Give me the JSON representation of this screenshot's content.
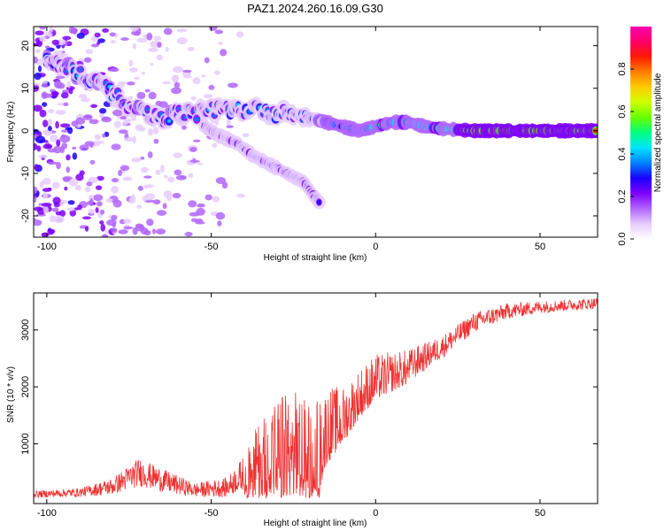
{
  "title": "PAZ1.2024.260.16.09.G30",
  "chart_data": [
    {
      "type": "heatmap",
      "title": "PAZ1.2024.260.16.09.G30",
      "xlabel": "Height of straight line (km)",
      "ylabel": "Frequency (Hz)",
      "xlim": [
        -104,
        67.5
      ],
      "ylim": [
        -25,
        24.5
      ],
      "xticks": [
        -100,
        -50,
        0,
        50
      ],
      "yticks": [
        -20,
        -10,
        0,
        10,
        20
      ],
      "colorbar": {
        "label": "Normalized spectral amplitude",
        "range": [
          0,
          1
        ],
        "ticks": [
          0.0,
          0.2,
          0.4,
          0.6,
          0.8
        ],
        "colors": [
          "#ffffff",
          "#e6ccff",
          "#b266ff",
          "#7f00ff",
          "#1a00ff",
          "#0080ff",
          "#00e5ff",
          "#00ff80",
          "#66ff00",
          "#ccff00",
          "#ffcc00",
          "#ff7f00",
          "#ff1a00",
          "#ff0066",
          "#ff00b2"
        ]
      },
      "ridges": [
        {
          "name": "main",
          "points": [
            [
              -100,
              17
            ],
            [
              -92,
              14
            ],
            [
              -85,
              11
            ],
            [
              -80,
              9
            ],
            [
              -75,
              6
            ],
            [
              -70,
              4
            ],
            [
              -65,
              3
            ],
            [
              -60,
              4
            ],
            [
              -55,
              4
            ],
            [
              -50,
              5
            ],
            [
              -45,
              5
            ],
            [
              -40,
              5
            ],
            [
              -35,
              5
            ],
            [
              -30,
              4
            ],
            [
              -25,
              4
            ],
            [
              -20,
              3
            ],
            [
              -15,
              2
            ],
            [
              -10,
              1
            ],
            [
              -5,
              0
            ],
            [
              0,
              1
            ],
            [
              5,
              2
            ],
            [
              10,
              2
            ],
            [
              15,
              1
            ],
            [
              20,
              0.5
            ],
            [
              30,
              0
            ],
            [
              40,
              0
            ],
            [
              50,
              0
            ],
            [
              60,
              0
            ],
            [
              67,
              0
            ]
          ]
        },
        {
          "name": "branch",
          "points": [
            [
              -52,
              1
            ],
            [
              -48,
              -1
            ],
            [
              -42,
              -3
            ],
            [
              -37,
              -6
            ],
            [
              -32,
              -8
            ],
            [
              -27,
              -10
            ],
            [
              -22,
              -12
            ],
            [
              -19,
              -15
            ],
            [
              -17,
              -17
            ]
          ]
        }
      ]
    },
    {
      "type": "line",
      "xlabel": "Height of straight line (km)",
      "ylabel": "SNR (10 * v/v)",
      "xlim": [
        -104,
        67.5
      ],
      "ylim": [
        -50,
        3650
      ],
      "xticks": [
        -100,
        -50,
        0,
        50
      ],
      "yticks": [
        1000,
        2000,
        3000
      ],
      "color": "#ee3333",
      "envelope": [
        {
          "x": -104,
          "base": 100,
          "amp": 120
        },
        {
          "x": -90,
          "base": 130,
          "amp": 150
        },
        {
          "x": -80,
          "base": 220,
          "amp": 300
        },
        {
          "x": -72,
          "base": 450,
          "amp": 500
        },
        {
          "x": -64,
          "base": 300,
          "amp": 400
        },
        {
          "x": -55,
          "base": 160,
          "amp": 250
        },
        {
          "x": -45,
          "base": 200,
          "amp": 350
        },
        {
          "x": -40,
          "base": 450,
          "amp": 600
        },
        {
          "x": -35,
          "base": 800,
          "amp": 1100
        },
        {
          "x": -30,
          "base": 950,
          "amp": 1500
        },
        {
          "x": -25,
          "base": 1000,
          "amp": 1600
        },
        {
          "x": -20,
          "base": 900,
          "amp": 1500
        },
        {
          "x": -17,
          "base": 850,
          "amp": 1600
        },
        {
          "x": -15,
          "base": 1200,
          "amp": 1400
        },
        {
          "x": -10,
          "base": 1400,
          "amp": 1000
        },
        {
          "x": -5,
          "base": 1800,
          "amp": 900
        },
        {
          "x": 0,
          "base": 2100,
          "amp": 800
        },
        {
          "x": 10,
          "base": 2300,
          "amp": 600
        },
        {
          "x": 20,
          "base": 2650,
          "amp": 400
        },
        {
          "x": 30,
          "base": 3100,
          "amp": 350
        },
        {
          "x": 40,
          "base": 3300,
          "amp": 280
        },
        {
          "x": 50,
          "base": 3380,
          "amp": 220
        },
        {
          "x": 60,
          "base": 3420,
          "amp": 200
        },
        {
          "x": 67.5,
          "base": 3450,
          "amp": 200
        }
      ]
    }
  ]
}
